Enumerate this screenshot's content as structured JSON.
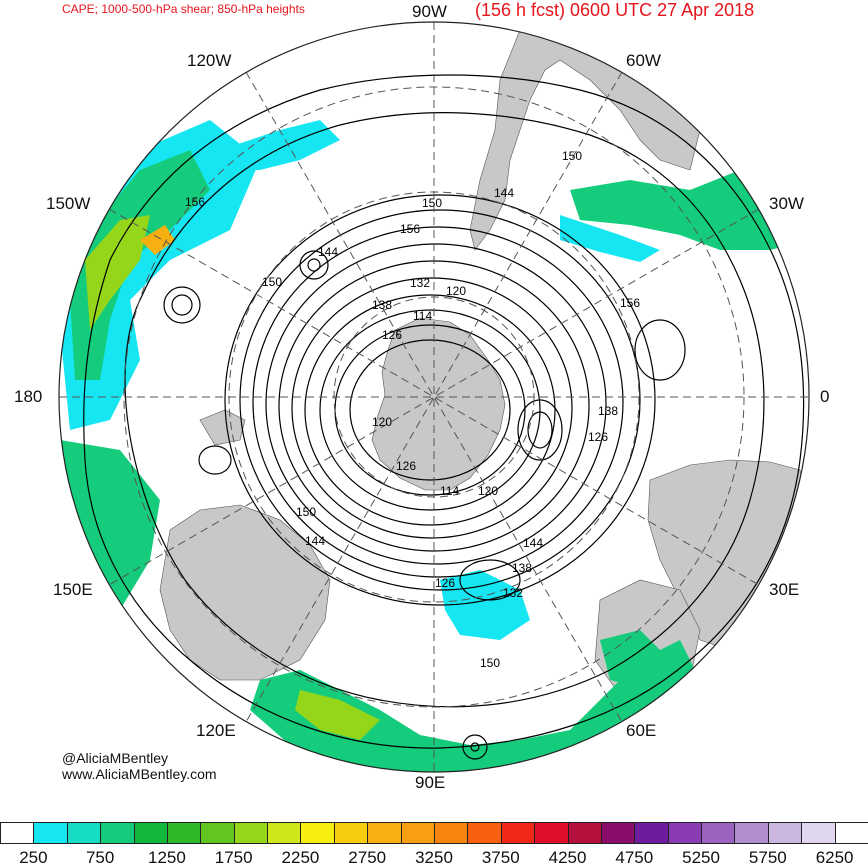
{
  "header": {
    "left_title": "CAPE; 1000-500-hPa shear; 850-hPa heights",
    "right_title": "(156 h fcst) 0600 UTC 27 Apr 2018"
  },
  "longitude_labels": {
    "lon_90w": "90W",
    "lon_120w": "120W",
    "lon_60w": "60W",
    "lon_150w": "150W",
    "lon_30w": "30W",
    "lon_180": "180",
    "lon_0": "0",
    "lon_150e": "150E",
    "lon_30e": "30E",
    "lon_120e": "120E",
    "lon_60e": "60E",
    "lon_90e": "90E"
  },
  "contour_labels": [
    "156",
    "150",
    "144",
    "150",
    "156",
    "132",
    "120",
    "138",
    "114",
    "126",
    "150",
    "144",
    "156",
    "138",
    "126",
    "120",
    "126",
    "114",
    "120",
    "150",
    "144",
    "144",
    "138",
    "132",
    "126",
    "150"
  ],
  "credit": {
    "twitter": "@AliciaMBentley",
    "website": "www.AliciaMBentley.com"
  },
  "colorbar": {
    "labels": [
      "250",
      "750",
      "1250",
      "1750",
      "2250",
      "2750",
      "3250",
      "3750",
      "4250",
      "4750",
      "5250",
      "5750",
      "6250"
    ],
    "colors": [
      "#ffffff",
      "#16e6f2",
      "#15dcc3",
      "#14cc7c",
      "#11b83c",
      "#2eb82a",
      "#62c620",
      "#96d61a",
      "#cee61a",
      "#f8ee10",
      "#f8cc10",
      "#f8b010",
      "#f89e10",
      "#f88410",
      "#f86010",
      "#f02818",
      "#e0102c",
      "#b4103c",
      "#8c0c6c",
      "#6c1c9c",
      "#8a3cb4",
      "#9c62c0",
      "#b38ece",
      "#cab6e0",
      "#e0d6ee",
      "#ffffff"
    ]
  },
  "map_colors": {
    "land": "#c8c8c8",
    "ocean": "#ffffff",
    "cape_low": "#16e6f2",
    "cape_mid": "#14cc7c",
    "cape_high": "#96d61a",
    "cape_peak": "#f8b010",
    "contour": "#000000",
    "grid": "#555555"
  }
}
